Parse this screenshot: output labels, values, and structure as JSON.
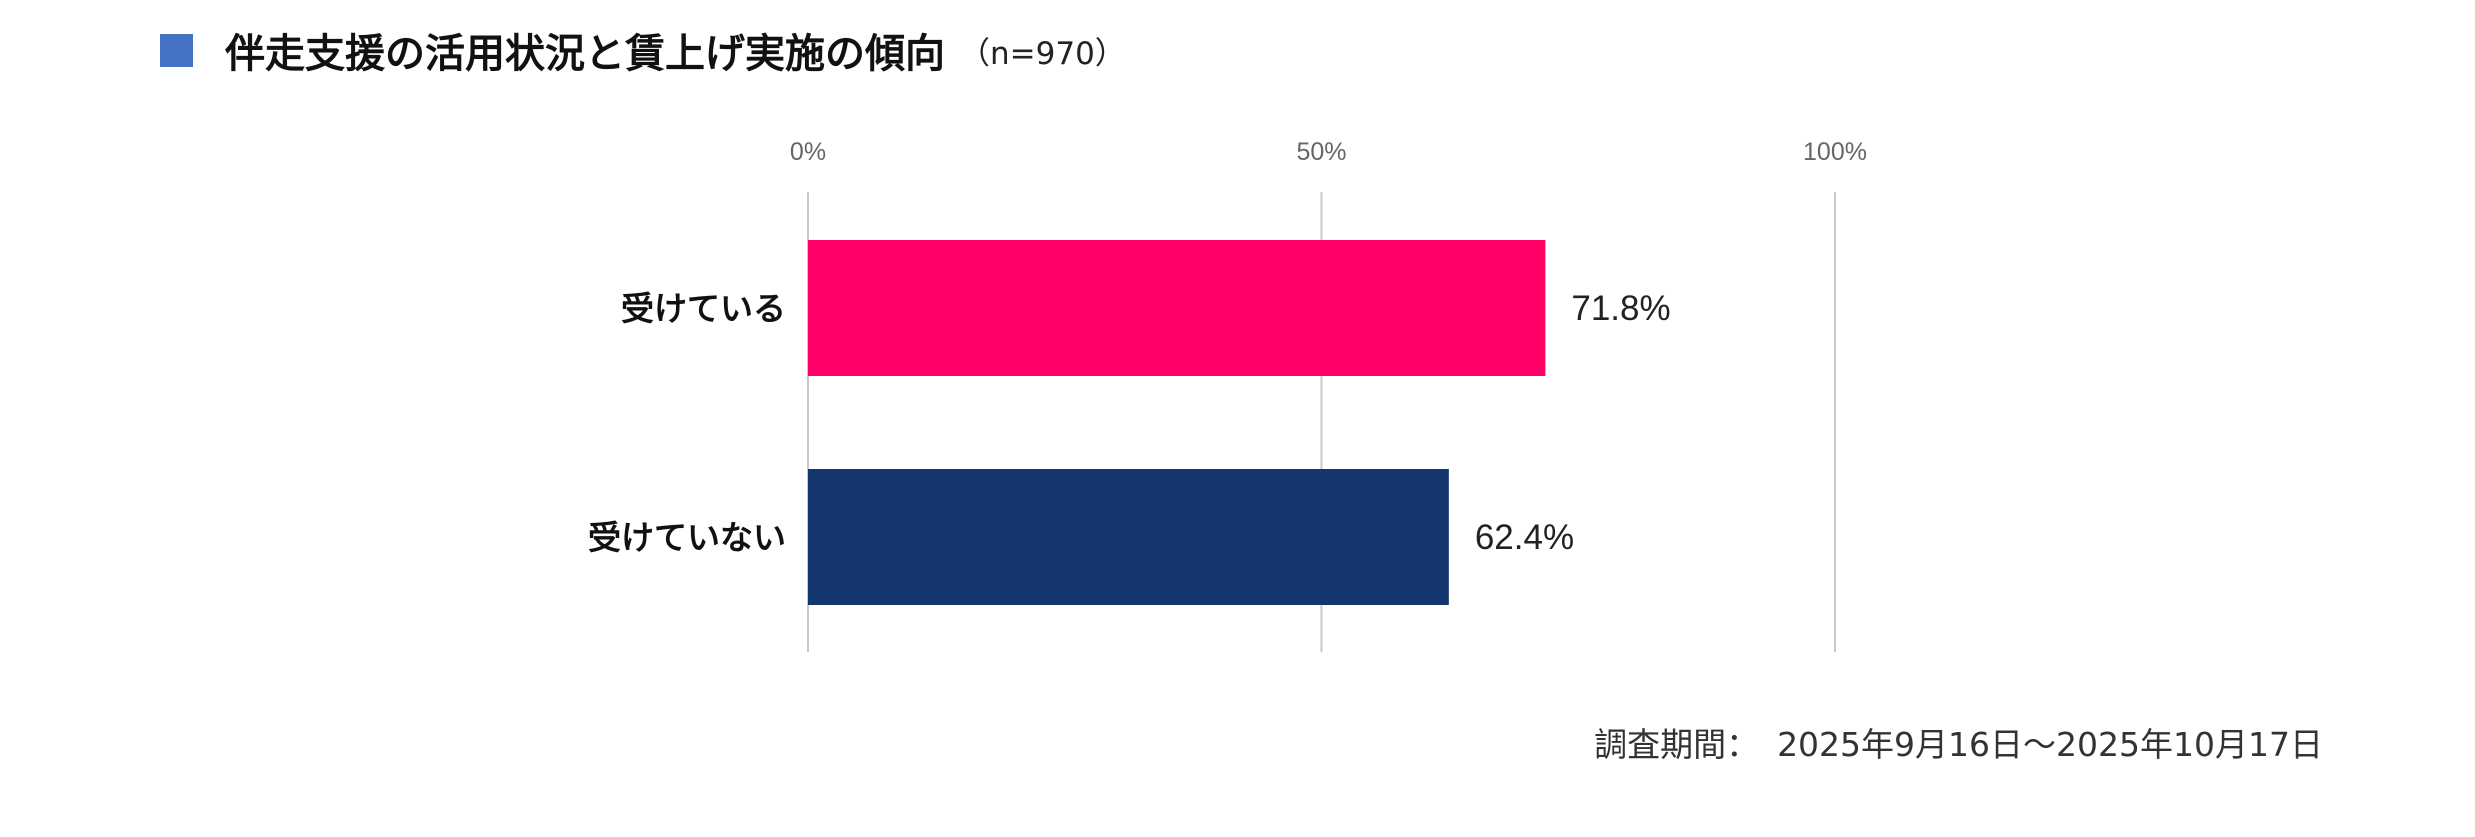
{
  "title": {
    "text": "伴走支援の活用状況と賃上げ実施の傾向",
    "sample": "（n=970）",
    "marker_color": "#4472C4"
  },
  "chart_data": {
    "type": "bar",
    "orientation": "horizontal",
    "title": "伴走支援の活用状況と賃上げ実施の傾向",
    "categories": [
      "受けている",
      "受けていない"
    ],
    "values": [
      71.8,
      62.4
    ],
    "value_labels": [
      "71.8%",
      "62.4%"
    ],
    "colors": [
      "#FF0066",
      "#14366E"
    ],
    "xlim": [
      0,
      100
    ],
    "xticks": [
      0,
      50,
      100
    ],
    "xtick_labels": [
      "0%",
      "50%",
      "100%"
    ],
    "tick_position": "top",
    "grid": true,
    "legend": "none"
  },
  "footer": {
    "period_label": "調査期間：",
    "period_value": "2025年9月16日～2025年10月17日"
  }
}
